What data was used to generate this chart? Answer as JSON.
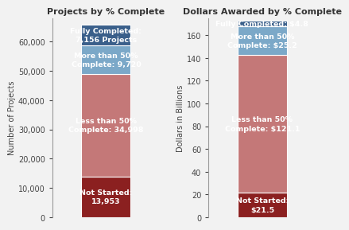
{
  "chart1_title": "Projects by % Complete",
  "chart2_title": "Dollars Awarded by % Complete",
  "chart1_ylabel": "Number of Projects",
  "chart2_ylabel": "Dollars in Billions",
  "chart1_ylim": [
    0,
    68000
  ],
  "chart2_ylim": [
    0,
    175
  ],
  "chart1_yticks": [
    0,
    10000,
    20000,
    30000,
    40000,
    50000,
    60000
  ],
  "chart2_yticks": [
    0,
    20,
    40,
    60,
    80,
    100,
    120,
    140,
    160
  ],
  "segments": [
    {
      "label1": "Not Started:\n13,953",
      "label2": "Not Started:\n$21.5",
      "value1": 13953,
      "value2": 21.5,
      "color": "#8B2020"
    },
    {
      "label1": "Less than 50%\nComplete: 34,998",
      "label2": "Less than 50%\nComplete: $121.1",
      "value1": 34998,
      "value2": 121.1,
      "color": "#C47878"
    },
    {
      "label1": "More than 50%\nComplete: 9,720",
      "label2": "More than 50%\nComplete: $25.2",
      "value1": 9720,
      "value2": 25.2,
      "color": "#7BA8C8"
    },
    {
      "label1": "Fully Completed:\n7,156 Projects",
      "label2": "Fully Completed: $4.8",
      "value1": 7156,
      "value2": 4.8,
      "color": "#3A5F8A"
    }
  ],
  "bar_width": 0.55,
  "background_color": "#F2F2F2",
  "text_color": "white",
  "title_fontsize": 8,
  "label_fontsize": 6.8,
  "tick_fontsize": 7,
  "ylabel_fontsize": 7
}
